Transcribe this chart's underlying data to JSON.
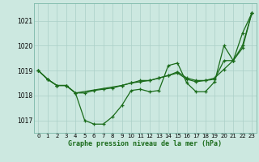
{
  "xlabel": "Graphe pression niveau de la mer (hPa)",
  "background_color": "#cce8e0",
  "grid_color": "#aacfc7",
  "line_color": "#1a6b1a",
  "ylim": [
    1016.5,
    1021.7
  ],
  "yticks": [
    1017,
    1018,
    1019,
    1020,
    1021
  ],
  "xticks": [
    0,
    1,
    2,
    3,
    4,
    5,
    6,
    7,
    8,
    9,
    10,
    11,
    12,
    13,
    14,
    15,
    16,
    17,
    18,
    19,
    20,
    21,
    22,
    23
  ],
  "series1_x": [
    0,
    1,
    2,
    3,
    4,
    5,
    6,
    7,
    8,
    9,
    10,
    11,
    12,
    13,
    14,
    15,
    16,
    17,
    18,
    19,
    20,
    21,
    22,
    23
  ],
  "series1": [
    1019.0,
    1018.65,
    1018.4,
    1018.4,
    1018.1,
    1017.0,
    1016.85,
    1016.85,
    1017.15,
    1017.6,
    1018.2,
    1018.25,
    1018.15,
    1018.2,
    1019.2,
    1019.3,
    1018.5,
    1018.15,
    1018.15,
    1018.55,
    1020.0,
    1019.4,
    1020.5,
    1021.3
  ],
  "series2_x": [
    0,
    1,
    2,
    3,
    4,
    5,
    6,
    7,
    8,
    9,
    10,
    11,
    12,
    13,
    14,
    15,
    16,
    17,
    18,
    19,
    20,
    21,
    22,
    23
  ],
  "series2": [
    1019.0,
    1018.65,
    1018.4,
    1018.4,
    1018.1,
    1018.1,
    1018.2,
    1018.25,
    1018.3,
    1018.4,
    1018.5,
    1018.55,
    1018.6,
    1018.7,
    1018.8,
    1018.9,
    1018.65,
    1018.55,
    1018.6,
    1018.7,
    1019.05,
    1019.4,
    1019.9,
    1021.3
  ],
  "series3_x": [
    0,
    1,
    2,
    3,
    4,
    9,
    10,
    11,
    12,
    13,
    14,
    15,
    16,
    17,
    18,
    19,
    20,
    21,
    22,
    23
  ],
  "series3": [
    1019.0,
    1018.65,
    1018.4,
    1018.4,
    1018.1,
    1018.4,
    1018.5,
    1018.6,
    1018.6,
    1018.7,
    1018.8,
    1018.95,
    1018.7,
    1018.6,
    1018.6,
    1018.65,
    1019.4,
    1019.4,
    1020.0,
    1021.3
  ],
  "tick_fontsize": 5.0,
  "xlabel_fontsize": 6.0
}
